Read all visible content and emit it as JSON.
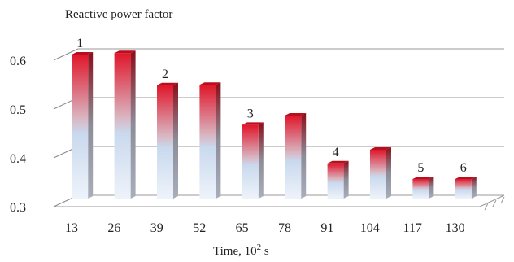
{
  "chart_data": {
    "type": "bar",
    "title": "Reactive power factor",
    "xlabel": "Time,  10",
    "xlabel_sup": "2",
    "xlabel_unit": " s",
    "categories": [
      "13",
      "26",
      "39",
      "52",
      "65",
      "78",
      "91",
      "104",
      "117",
      "130"
    ],
    "values": [
      0.595,
      0.598,
      0.532,
      0.533,
      0.451,
      0.47,
      0.372,
      0.4,
      0.34,
      0.34
    ],
    "bar_labels": [
      "1",
      "",
      "2",
      "",
      "3",
      "",
      "4",
      "",
      "5",
      "6"
    ],
    "ylim": [
      0.3,
      0.6
    ],
    "yticks": [
      "0.3",
      "0.4",
      "0.5",
      "0.6"
    ],
    "grid": true,
    "three_d": true,
    "colors": {
      "top": "#e0162a",
      "mid": "#c9d9ee",
      "bottom": "#eef3fa"
    }
  }
}
